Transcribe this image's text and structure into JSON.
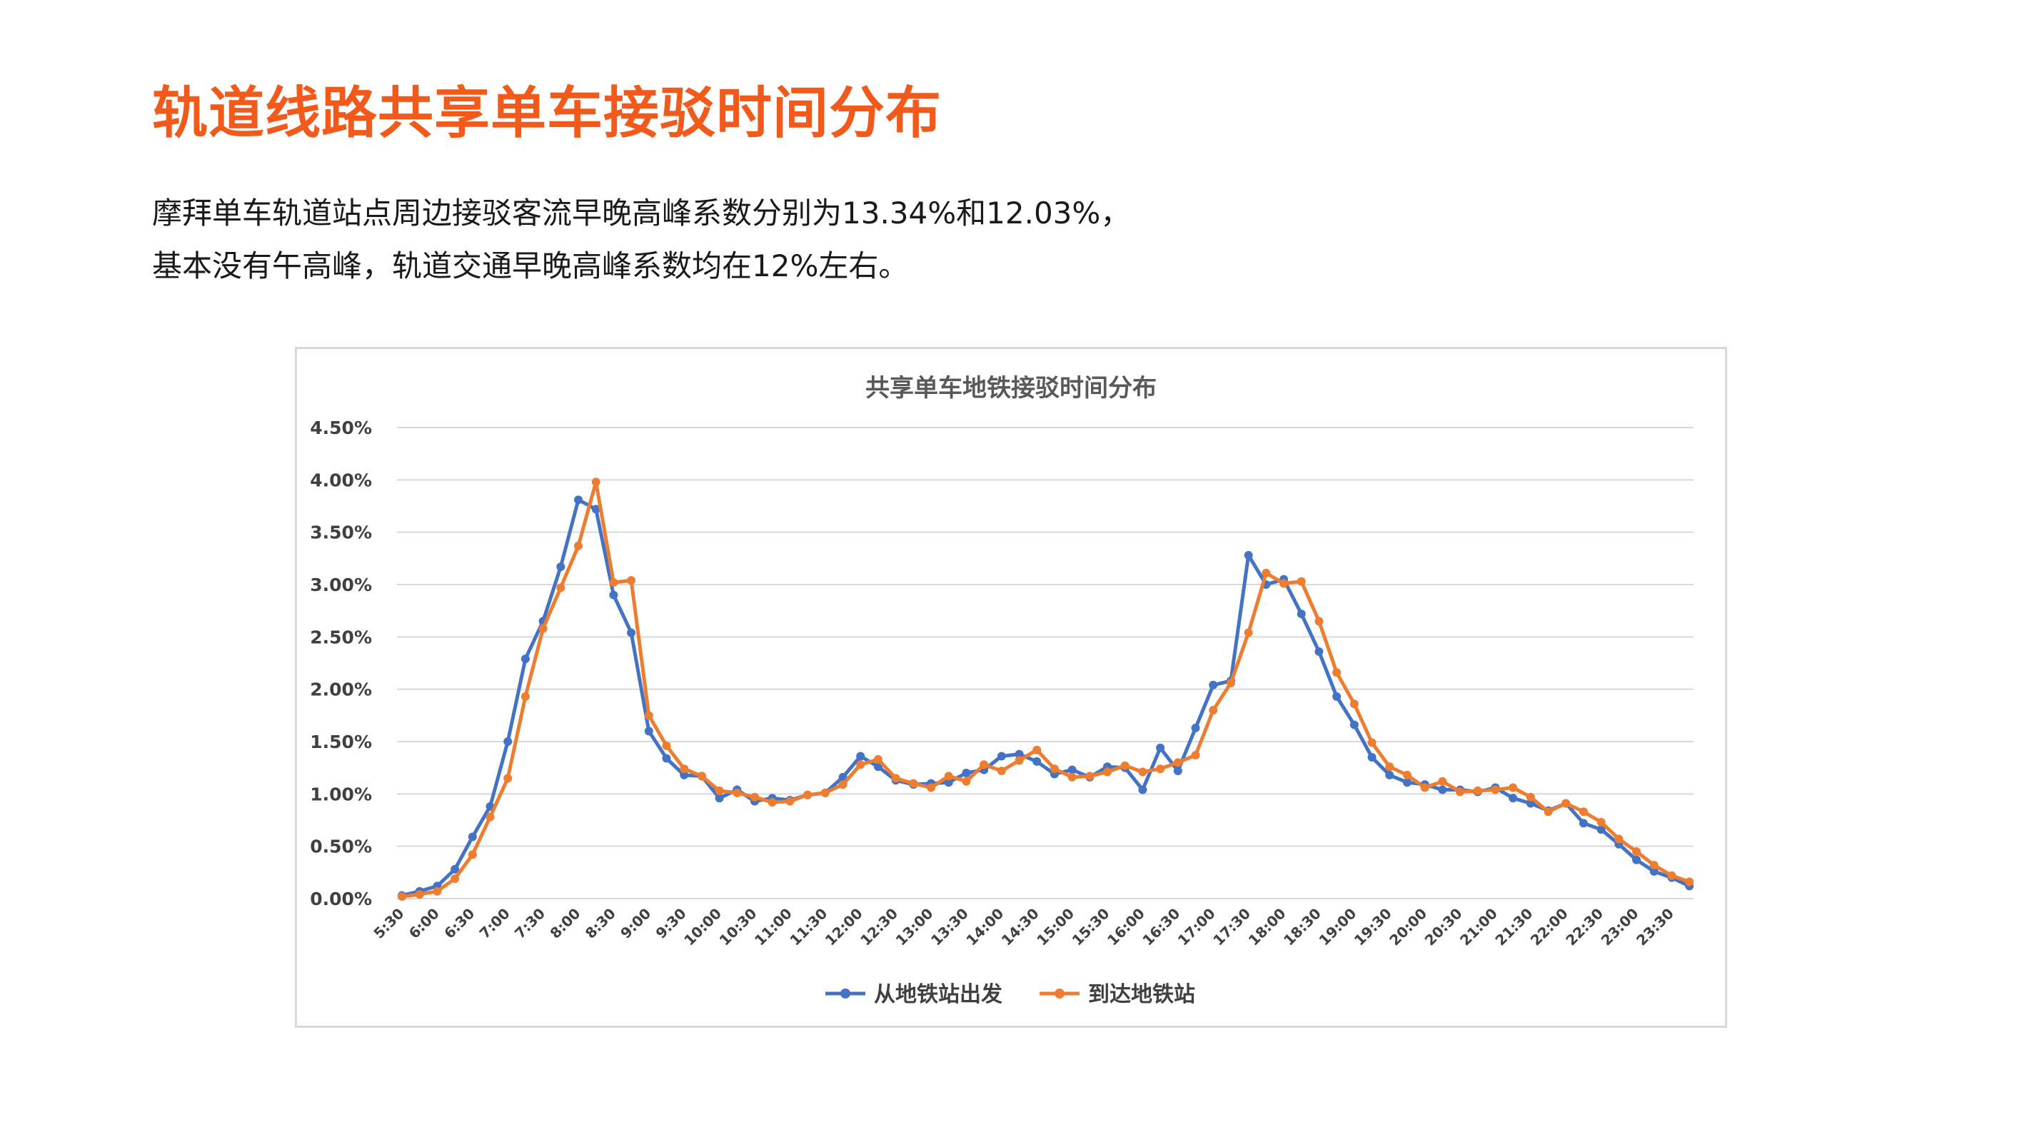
{
  "page": {
    "title": "轨道线路共享单车接驳时间分布",
    "paragraph_lines": [
      "摩拜单车轨道站点周边接驳客流早晚高峰系数分别为13.34%和12.03%，",
      "基本没有午高峰，轨道交通早晚高峰系数均在12%左右。"
    ]
  },
  "chart_data": {
    "type": "line",
    "title": "共享单车地铁接驳时间分布",
    "xlabel": "",
    "ylabel": "",
    "ylim": [
      0,
      0.045
    ],
    "y_ticks": [
      "0.00%",
      "0.50%",
      "1.00%",
      "1.50%",
      "2.00%",
      "2.50%",
      "3.00%",
      "3.50%",
      "4.00%",
      "4.50%"
    ],
    "x_tick_labels": [
      "5:30",
      "6:00",
      "6:30",
      "7:00",
      "7:30",
      "8:00",
      "8:30",
      "9:00",
      "9:30",
      "10:00",
      "10:30",
      "11:00",
      "11:30",
      "12:00",
      "12:30",
      "13:00",
      "13:30",
      "14:00",
      "14:30",
      "15:00",
      "15:30",
      "16:00",
      "16:30",
      "17:00",
      "17:30",
      "18:00",
      "18:30",
      "19:00",
      "19:30",
      "20:00",
      "20:30",
      "21:00",
      "21:30",
      "22:00",
      "22:30",
      "23:00",
      "23:30"
    ],
    "x_start": "5:30",
    "x_interval_minutes": 15,
    "grid": true,
    "legend_position": "bottom",
    "series": [
      {
        "name": "从地铁站出发",
        "color": "#4472c4",
        "values": [
          0.0003,
          0.0007,
          0.0012,
          0.0028,
          0.0059,
          0.0088,
          0.015,
          0.0229,
          0.0265,
          0.0317,
          0.0381,
          0.0372,
          0.029,
          0.0254,
          0.016,
          0.0134,
          0.0118,
          0.0117,
          0.0096,
          0.0104,
          0.0093,
          0.0096,
          0.0094,
          0.0099,
          0.0101,
          0.0116,
          0.0136,
          0.0126,
          0.0113,
          0.0109,
          0.011,
          0.0111,
          0.012,
          0.0123,
          0.0136,
          0.0138,
          0.0131,
          0.0119,
          0.0123,
          0.0116,
          0.0126,
          0.0125,
          0.0104,
          0.0144,
          0.0122,
          0.0163,
          0.0204,
          0.0208,
          0.0328,
          0.03,
          0.0305,
          0.0272,
          0.0236,
          0.0193,
          0.0166,
          0.0135,
          0.0118,
          0.0111,
          0.0109,
          0.0104,
          0.0104,
          0.0102,
          0.0106,
          0.0096,
          0.0091,
          0.0084,
          0.0091,
          0.0072,
          0.0066,
          0.0052,
          0.0037,
          0.0026,
          0.002,
          0.0012
        ]
      },
      {
        "name": "到达地铁站",
        "color": "#ed7d31",
        "values": [
          0.0002,
          0.0004,
          0.0007,
          0.0019,
          0.0042,
          0.0078,
          0.0115,
          0.0193,
          0.0258,
          0.0297,
          0.0337,
          0.0398,
          0.0302,
          0.0304,
          0.0175,
          0.0146,
          0.0124,
          0.0117,
          0.0103,
          0.0101,
          0.0097,
          0.0092,
          0.0093,
          0.0099,
          0.0101,
          0.0109,
          0.0128,
          0.0133,
          0.0115,
          0.011,
          0.0106,
          0.0117,
          0.0112,
          0.0128,
          0.0122,
          0.0132,
          0.0142,
          0.0124,
          0.0116,
          0.0117,
          0.0121,
          0.0127,
          0.0121,
          0.0124,
          0.013,
          0.0137,
          0.018,
          0.0206,
          0.0254,
          0.0311,
          0.0301,
          0.0303,
          0.0265,
          0.0216,
          0.0186,
          0.0149,
          0.0126,
          0.0118,
          0.0106,
          0.0112,
          0.0102,
          0.0103,
          0.0104,
          0.0106,
          0.0097,
          0.0083,
          0.0091,
          0.0083,
          0.0073,
          0.0057,
          0.0045,
          0.0032,
          0.0022,
          0.0016
        ]
      }
    ]
  }
}
